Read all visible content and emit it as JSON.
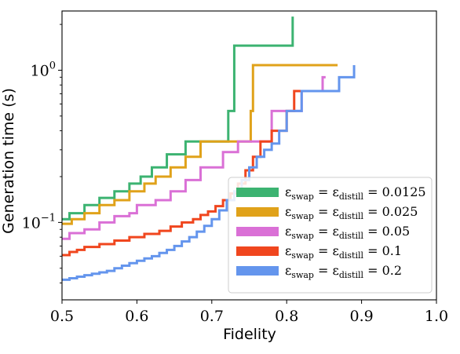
{
  "chart_data": {
    "type": "line",
    "step": true,
    "title": "",
    "xlabel": "Fidelity",
    "ylabel": "Generation time (s)",
    "xlim": [
      0.5,
      1.0
    ],
    "ylim": [
      0.031,
      2.45
    ],
    "yscale": "log",
    "grid": false,
    "legend_position": "lower-right",
    "x_ticks": [
      {
        "value": 0.5,
        "label": "0.5"
      },
      {
        "value": 0.6,
        "label": "0.6"
      },
      {
        "value": 0.7,
        "label": "0.7"
      },
      {
        "value": 0.8,
        "label": "0.8"
      },
      {
        "value": 0.9,
        "label": "0.9"
      },
      {
        "value": 1.0,
        "label": "1.0"
      }
    ],
    "y_major_ticks": [
      {
        "value": 0.1,
        "base": "10",
        "exp": "−1"
      },
      {
        "value": 1.0,
        "base": "10",
        "exp": "0"
      }
    ],
    "y_minor_ticks": [
      0.04,
      0.05,
      0.06,
      0.07,
      0.08,
      0.09,
      0.2,
      0.3,
      0.4,
      0.5,
      0.6,
      0.7,
      0.8,
      0.9,
      2.0
    ],
    "series": [
      {
        "name": "εswap = εdistill = 0.0125",
        "legend": {
          "eps": "ε",
          "sub1": "swap",
          "eq1": " = ",
          "sub2": "distill",
          "eq2": " = ",
          "val": "0.0125"
        },
        "color": "#3cb371",
        "x": [
          0.5,
          0.51,
          0.53,
          0.55,
          0.57,
          0.59,
          0.605,
          0.62,
          0.64,
          0.665,
          0.722,
          0.73,
          0.808
        ],
        "y": [
          0.105,
          0.115,
          0.13,
          0.145,
          0.16,
          0.18,
          0.2,
          0.23,
          0.28,
          0.34,
          0.54,
          1.45,
          2.25
        ]
      },
      {
        "name": "εswap = εdistill = 0.025",
        "legend": {
          "eps": "ε",
          "sub1": "swap",
          "eq1": " = ",
          "sub2": "distill",
          "eq2": " = ",
          "val": "0.025"
        },
        "color": "#e0a21a",
        "x": [
          0.5,
          0.513,
          0.53,
          0.55,
          0.57,
          0.59,
          0.61,
          0.625,
          0.645,
          0.665,
          0.685,
          0.752,
          0.755,
          0.868
        ],
        "y": [
          0.098,
          0.105,
          0.115,
          0.13,
          0.14,
          0.16,
          0.18,
          0.2,
          0.23,
          0.27,
          0.34,
          0.54,
          1.08,
          1.08
        ]
      },
      {
        "name": "εswap = εdistill = 0.05",
        "legend": {
          "eps": "ε",
          "sub1": "swap",
          "eq1": " = ",
          "sub2": "distill",
          "eq2": " = ",
          "val": "0.05"
        },
        "color": "#da70d6",
        "x": [
          0.5,
          0.51,
          0.53,
          0.55,
          0.57,
          0.59,
          0.6,
          0.625,
          0.645,
          0.665,
          0.685,
          0.715,
          0.735,
          0.78,
          0.79,
          0.82,
          0.84,
          0.848,
          0.852
        ],
        "y": [
          0.078,
          0.085,
          0.09,
          0.1,
          0.11,
          0.115,
          0.13,
          0.14,
          0.16,
          0.19,
          0.23,
          0.29,
          0.34,
          0.54,
          0.54,
          0.73,
          0.73,
          0.9,
          0.9
        ]
      },
      {
        "name": "εswap = εdistill = 0.1",
        "legend": {
          "eps": "ε",
          "sub1": "swap",
          "eq1": " = ",
          "sub2": "distill",
          "eq2": " = ",
          "val": "0.1"
        },
        "color": "#f0461e",
        "x": [
          0.5,
          0.51,
          0.52,
          0.53,
          0.55,
          0.57,
          0.59,
          0.61,
          0.63,
          0.645,
          0.66,
          0.675,
          0.685,
          0.695,
          0.705,
          0.715,
          0.725,
          0.735,
          0.745,
          0.755,
          0.765,
          0.78,
          0.8,
          0.81,
          0.822
        ],
        "y": [
          0.061,
          0.064,
          0.066,
          0.069,
          0.072,
          0.076,
          0.08,
          0.084,
          0.088,
          0.094,
          0.1,
          0.105,
          0.112,
          0.118,
          0.128,
          0.14,
          0.155,
          0.18,
          0.22,
          0.27,
          0.34,
          0.4,
          0.54,
          0.73,
          0.73
        ]
      },
      {
        "name": "εswap = εdistill = 0.2",
        "legend": {
          "eps": "ε",
          "sub1": "swap",
          "eq1": " = ",
          "sub2": "distill",
          "eq2": " = ",
          "val": "0.2"
        },
        "color": "#6495ed",
        "x": [
          0.5,
          0.51,
          0.52,
          0.53,
          0.54,
          0.55,
          0.56,
          0.57,
          0.58,
          0.59,
          0.6,
          0.61,
          0.62,
          0.63,
          0.64,
          0.65,
          0.66,
          0.67,
          0.68,
          0.69,
          0.7,
          0.71,
          0.72,
          0.73,
          0.74,
          0.75,
          0.76,
          0.77,
          0.78,
          0.79,
          0.8,
          0.82,
          0.85,
          0.87,
          0.89
        ],
        "y": [
          0.042,
          0.043,
          0.044,
          0.045,
          0.046,
          0.047,
          0.048,
          0.05,
          0.052,
          0.054,
          0.056,
          0.058,
          0.06,
          0.063,
          0.066,
          0.07,
          0.075,
          0.08,
          0.087,
          0.095,
          0.105,
          0.12,
          0.14,
          0.16,
          0.19,
          0.23,
          0.27,
          0.3,
          0.33,
          0.4,
          0.54,
          0.73,
          0.73,
          0.9,
          1.08
        ]
      }
    ]
  }
}
